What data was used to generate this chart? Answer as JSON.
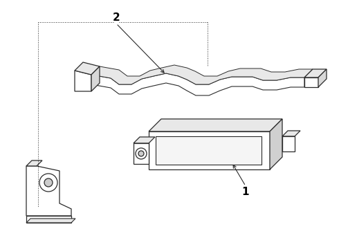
{
  "background_color": "#ffffff",
  "line_color": "#2a2a2a",
  "label_color": "#000000",
  "fig_width": 4.9,
  "fig_height": 3.6,
  "dpi": 100,
  "callout_1": "1",
  "callout_2": "2"
}
